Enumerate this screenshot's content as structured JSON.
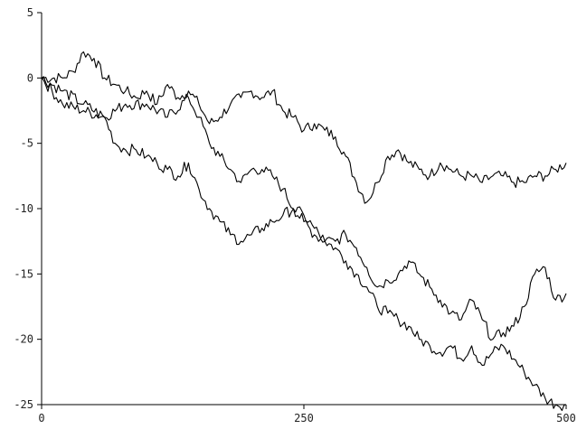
{
  "chart_data": {
    "type": "line",
    "title": "",
    "xlabel": "",
    "ylabel": "",
    "xlim": [
      0,
      500
    ],
    "ylim": [
      -25,
      5
    ],
    "x_ticks": [
      0,
      250,
      500
    ],
    "y_ticks": [
      5,
      0,
      -5,
      -10,
      -15,
      -20,
      -25
    ],
    "x_tick_labels": [
      "0",
      "250",
      "500"
    ],
    "y_tick_labels": [
      "5",
      "0",
      "-5",
      "-10",
      "-15",
      "-20",
      "-25"
    ],
    "grid": false,
    "legend": "none",
    "line_color": "#000000",
    "series": [
      {
        "x": [
          0,
          20,
          30,
          40,
          50,
          60,
          70,
          80,
          90,
          100,
          110,
          120,
          130,
          140,
          150,
          160,
          170,
          180,
          190,
          200,
          210,
          220,
          230,
          240,
          250,
          260,
          270,
          280,
          290,
          300,
          310,
          320,
          330,
          340,
          350,
          360,
          370,
          380,
          390,
          400,
          410,
          420,
          430,
          440,
          450,
          460,
          470,
          480,
          490,
          500
        ],
        "values": [
          0,
          0,
          0.5,
          2,
          1.5,
          0,
          -0.5,
          -1,
          -1.5,
          -1,
          -2,
          -0.5,
          -1.5,
          -1,
          -2,
          -3.5,
          -3,
          -2,
          -1.5,
          -1,
          -1.5,
          -1,
          -2.5,
          -3,
          -4,
          -3.5,
          -4,
          -4.5,
          -6,
          -8,
          -9.5,
          -8,
          -6,
          -5.5,
          -6.5,
          -7,
          -7.5,
          -6.5,
          -7,
          -7.5,
          -7.5,
          -8,
          -7.5,
          -7.5,
          -8,
          -8,
          -7.5,
          -7.5,
          -7,
          -6.5
        ]
      },
      {
        "x": [
          0,
          20,
          40,
          60,
          80,
          100,
          120,
          140,
          150,
          160,
          170,
          180,
          190,
          200,
          210,
          220,
          230,
          240,
          250,
          260,
          270,
          280,
          290,
          300,
          310,
          320,
          330,
          340,
          350,
          360,
          370,
          380,
          390,
          400,
          410,
          420,
          430,
          440,
          450,
          460,
          470,
          480,
          490,
          500
        ],
        "values": [
          0,
          -2,
          -2.5,
          -3,
          -2,
          -2,
          -3,
          -1.5,
          -3,
          -5,
          -6,
          -7,
          -8,
          -7,
          -7,
          -7.5,
          -8.5,
          -10,
          -11,
          -12,
          -12.5,
          -13,
          -14,
          -15,
          -16,
          -17.5,
          -18,
          -18.5,
          -19,
          -20,
          -20.5,
          -21,
          -20.5,
          -21.5,
          -20.5,
          -22,
          -21,
          -20.5,
          -21.5,
          -22.5,
          -23.5,
          -24.5,
          -25,
          -25
        ]
      },
      {
        "x": [
          0,
          20,
          40,
          60,
          70,
          80,
          90,
          100,
          110,
          120,
          130,
          140,
          150,
          160,
          170,
          180,
          190,
          200,
          210,
          220,
          230,
          240,
          250,
          260,
          270,
          280,
          290,
          300,
          310,
          320,
          330,
          340,
          350,
          360,
          370,
          380,
          390,
          400,
          410,
          420,
          430,
          440,
          450,
          460,
          470,
          480,
          490,
          500
        ],
        "values": [
          0,
          -1,
          -2,
          -3,
          -5,
          -5.5,
          -5.5,
          -6,
          -6.5,
          -7,
          -7.5,
          -6.5,
          -8.5,
          -10,
          -11,
          -12,
          -12.5,
          -12,
          -11.5,
          -11,
          -10.5,
          -10,
          -10.5,
          -11.5,
          -12.5,
          -12.5,
          -12,
          -13,
          -14.5,
          -16,
          -15.5,
          -15,
          -14,
          -15,
          -16,
          -17,
          -18,
          -18.5,
          -17,
          -18.5,
          -20,
          -19.5,
          -19,
          -17.5,
          -15,
          -14.5,
          -17,
          -16.5
        ]
      }
    ]
  }
}
